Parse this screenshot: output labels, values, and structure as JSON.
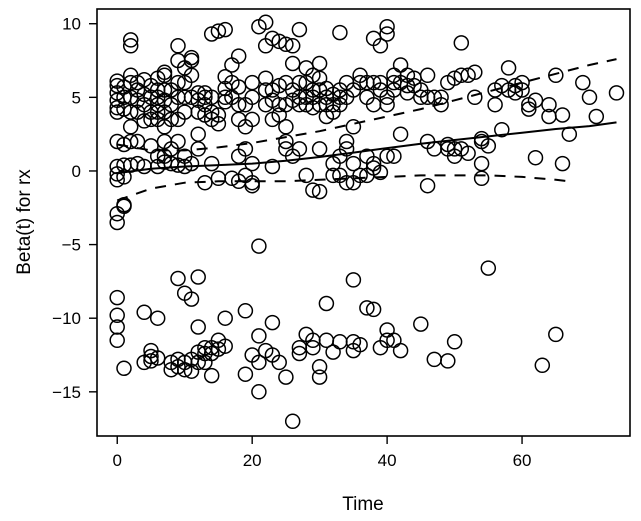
{
  "chart_data": {
    "type": "scatter",
    "xlabel": "Time",
    "ylabel": "Beta(t) for rx",
    "xlim": [
      -3,
      76
    ],
    "ylim": [
      -18,
      11
    ],
    "xticks": [
      0,
      20,
      40,
      60
    ],
    "yticks": [
      -15,
      -10,
      -5,
      0,
      5,
      10
    ],
    "grid": false,
    "points": [
      [
        0,
        -0.2
      ],
      [
        0,
        0.3
      ],
      [
        0,
        -0.6
      ],
      [
        0,
        2.0
      ],
      [
        0,
        4.0
      ],
      [
        0,
        4.3
      ],
      [
        0,
        4.8
      ],
      [
        0,
        5.3
      ],
      [
        0,
        5.8
      ],
      [
        0,
        6.1
      ],
      [
        0,
        -2.9
      ],
      [
        0,
        -3.5
      ],
      [
        0,
        -8.6
      ],
      [
        0,
        -9.8
      ],
      [
        0,
        -10.6
      ],
      [
        0,
        -11.5
      ],
      [
        1,
        -0.4
      ],
      [
        1,
        0.4
      ],
      [
        1,
        1.8
      ],
      [
        1,
        4.2
      ],
      [
        1,
        5.0
      ],
      [
        1,
        5.7
      ],
      [
        1,
        -2.3
      ],
      [
        1,
        -2.4
      ],
      [
        1,
        -13.4
      ],
      [
        2,
        0.4
      ],
      [
        2,
        2.0
      ],
      [
        2,
        3.0
      ],
      [
        2,
        4.0
      ],
      [
        2,
        5.0
      ],
      [
        2,
        6.0
      ],
      [
        2,
        6.5
      ],
      [
        2,
        8.5
      ],
      [
        2,
        8.9
      ],
      [
        3,
        0.5
      ],
      [
        3,
        2.0
      ],
      [
        3,
        4.0
      ],
      [
        3,
        5.5
      ],
      [
        3,
        6.0
      ],
      [
        3,
        4.8
      ],
      [
        4,
        0.3
      ],
      [
        4,
        3.4
      ],
      [
        4,
        4.5
      ],
      [
        4,
        5.2
      ],
      [
        4,
        6.2
      ],
      [
        4,
        -9.6
      ],
      [
        4,
        -13.0
      ],
      [
        5,
        1.7
      ],
      [
        5,
        3.5
      ],
      [
        5,
        4.0
      ],
      [
        5,
        5.0
      ],
      [
        5,
        5.8
      ],
      [
        5,
        -12.2
      ],
      [
        5,
        -12.6
      ],
      [
        5,
        -12.9
      ],
      [
        6,
        0.3
      ],
      [
        6,
        1.0
      ],
      [
        6,
        3.5
      ],
      [
        6,
        4.0
      ],
      [
        6,
        4.5
      ],
      [
        6,
        5.0
      ],
      [
        6,
        5.5
      ],
      [
        6,
        6.3
      ],
      [
        6,
        -10.0
      ],
      [
        6,
        -12.7
      ],
      [
        7,
        0.6
      ],
      [
        7,
        1.0
      ],
      [
        7,
        2.0
      ],
      [
        7,
        3.0
      ],
      [
        7,
        4.0
      ],
      [
        7,
        4.8
      ],
      [
        7,
        5.5
      ],
      [
        7,
        6.5
      ],
      [
        7,
        6.7
      ],
      [
        8,
        0.5
      ],
      [
        8,
        1.5
      ],
      [
        8,
        3.5
      ],
      [
        8,
        4.5
      ],
      [
        8,
        5.5
      ],
      [
        8,
        -13.0
      ],
      [
        8,
        -13.5
      ],
      [
        9,
        0.4
      ],
      [
        9,
        2.0
      ],
      [
        9,
        3.5
      ],
      [
        9,
        5.0
      ],
      [
        9,
        6.0
      ],
      [
        9,
        7.5
      ],
      [
        9,
        8.5
      ],
      [
        9,
        -7.3
      ],
      [
        9,
        -12.8
      ],
      [
        9,
        -13.3
      ],
      [
        10,
        0.3
      ],
      [
        10,
        1.0
      ],
      [
        10,
        4.0
      ],
      [
        10,
        5.0
      ],
      [
        10,
        6.0
      ],
      [
        10,
        7.0
      ],
      [
        10,
        -8.3
      ],
      [
        10,
        -13.0
      ],
      [
        10,
        -13.5
      ],
      [
        11,
        0.5
      ],
      [
        11,
        5.0
      ],
      [
        11,
        6.5
      ],
      [
        11,
        7.5
      ],
      [
        11,
        7.7
      ],
      [
        11,
        -8.7
      ],
      [
        11,
        -12.8
      ],
      [
        11,
        -13.6
      ],
      [
        12,
        1.5
      ],
      [
        12,
        2.5
      ],
      [
        12,
        4.0
      ],
      [
        12,
        4.8
      ],
      [
        12,
        5.3
      ],
      [
        12,
        -7.2
      ],
      [
        12,
        -10.6
      ],
      [
        12,
        -12.3
      ],
      [
        12,
        -13.0
      ],
      [
        13,
        -0.8
      ],
      [
        13,
        3.8
      ],
      [
        13,
        4.5
      ],
      [
        13,
        5.0
      ],
      [
        13,
        5.3
      ],
      [
        13,
        -12.0
      ],
      [
        13,
        -12.4
      ],
      [
        13,
        -13.0
      ],
      [
        14,
        0.5
      ],
      [
        14,
        3.5
      ],
      [
        14,
        4.0
      ],
      [
        14,
        5.0
      ],
      [
        14,
        9.3
      ],
      [
        14,
        -12.0
      ],
      [
        14,
        -12.4
      ],
      [
        14,
        -13.9
      ],
      [
        15,
        -0.5
      ],
      [
        15,
        3.2
      ],
      [
        15,
        3.8
      ],
      [
        15,
        9.5
      ],
      [
        15,
        -11.5
      ],
      [
        15,
        -12.1
      ],
      [
        16,
        4.7
      ],
      [
        16,
        5.0
      ],
      [
        16,
        5.6
      ],
      [
        16,
        6.4
      ],
      [
        16,
        9.6
      ],
      [
        16,
        -10.0
      ],
      [
        16,
        -11.9
      ],
      [
        17,
        5.0
      ],
      [
        17,
        6.0
      ],
      [
        17,
        7.2
      ],
      [
        17,
        -0.5
      ],
      [
        18,
        1.0
      ],
      [
        18,
        3.5
      ],
      [
        18,
        4.5
      ],
      [
        18,
        5.7
      ],
      [
        18,
        7.8
      ],
      [
        18,
        -0.7
      ],
      [
        19,
        1.5
      ],
      [
        19,
        3.0
      ],
      [
        19,
        4.5
      ],
      [
        19,
        -0.3
      ],
      [
        19,
        -9.5
      ],
      [
        19,
        -13.8
      ],
      [
        20,
        0.5
      ],
      [
        20,
        3.5
      ],
      [
        20,
        5.0
      ],
      [
        20,
        6.0
      ],
      [
        20,
        -0.8
      ],
      [
        20,
        -1.0
      ],
      [
        20,
        -12.5
      ],
      [
        21,
        9.8
      ],
      [
        21,
        -5.1
      ],
      [
        21,
        -11.2
      ],
      [
        21,
        -13.0
      ],
      [
        21,
        -15.0
      ],
      [
        22,
        10.1
      ],
      [
        22,
        4.5
      ],
      [
        22,
        5.5
      ],
      [
        22,
        6.3
      ],
      [
        22,
        8.5
      ],
      [
        22,
        -12.2
      ],
      [
        23,
        3.5
      ],
      [
        23,
        4.8
      ],
      [
        23,
        5.5
      ],
      [
        23,
        9.0
      ],
      [
        23,
        0.3
      ],
      [
        23,
        -10.3
      ],
      [
        23,
        -12.5
      ],
      [
        24,
        3.8
      ],
      [
        24,
        4.5
      ],
      [
        24,
        5.8
      ],
      [
        24,
        8.8
      ],
      [
        24,
        -13.0
      ],
      [
        25,
        1.5
      ],
      [
        25,
        2.0
      ],
      [
        25,
        3.0
      ],
      [
        25,
        4.5
      ],
      [
        25,
        6.0
      ],
      [
        25,
        8.6
      ],
      [
        25,
        -14.0
      ],
      [
        26,
        1.0
      ],
      [
        26,
        4.8
      ],
      [
        26,
        5.5
      ],
      [
        26,
        7.3
      ],
      [
        26,
        8.5
      ],
      [
        26,
        -17.0
      ],
      [
        27,
        1.5
      ],
      [
        27,
        4.5
      ],
      [
        27,
        5.0
      ],
      [
        27,
        6.0
      ],
      [
        27,
        9.6
      ],
      [
        27,
        -12.0
      ],
      [
        27,
        -12.4
      ],
      [
        28,
        4.5
      ],
      [
        28,
        5.0
      ],
      [
        28,
        6.0
      ],
      [
        28,
        7.0
      ],
      [
        28,
        -0.3
      ],
      [
        28,
        -11.1
      ],
      [
        29,
        4.3
      ],
      [
        29,
        5.0
      ],
      [
        29,
        5.5
      ],
      [
        29,
        6.5
      ],
      [
        29,
        -1.3
      ],
      [
        29,
        -11.5
      ],
      [
        29,
        -12.0
      ],
      [
        30,
        1.5
      ],
      [
        30,
        4.5
      ],
      [
        30,
        5.5
      ],
      [
        30,
        6.3
      ],
      [
        30,
        7.3
      ],
      [
        30,
        -1.4
      ],
      [
        30,
        -13.3
      ],
      [
        30,
        -14.0
      ],
      [
        31,
        3.7
      ],
      [
        31,
        4.5
      ],
      [
        31,
        5.0
      ],
      [
        31,
        5.6
      ],
      [
        31,
        -9.0
      ],
      [
        31,
        -11.5
      ],
      [
        32,
        0.5
      ],
      [
        32,
        4.0
      ],
      [
        32,
        4.5
      ],
      [
        32,
        5.2
      ],
      [
        32,
        -0.3
      ],
      [
        32,
        -12.3
      ],
      [
        33,
        1.0
      ],
      [
        33,
        4.5
      ],
      [
        33,
        5.0
      ],
      [
        33,
        5.5
      ],
      [
        33,
        9.4
      ],
      [
        33,
        -0.3
      ],
      [
        33,
        -11.6
      ],
      [
        34,
        1.5
      ],
      [
        34,
        2.0
      ],
      [
        34,
        5.0
      ],
      [
        34,
        6.0
      ],
      [
        34,
        -0.8
      ],
      [
        35,
        0.5
      ],
      [
        35,
        3.0
      ],
      [
        35,
        5.5
      ],
      [
        35,
        -0.8
      ],
      [
        35,
        -7.4
      ],
      [
        35,
        -11.6
      ],
      [
        35,
        -12.2
      ],
      [
        36,
        6.0
      ],
      [
        36,
        6.5
      ],
      [
        36,
        -0.3
      ],
      [
        36,
        -11.8
      ],
      [
        37,
        1.0
      ],
      [
        37,
        5.0
      ],
      [
        37,
        6.0
      ],
      [
        37,
        -0.3
      ],
      [
        37,
        -9.3
      ],
      [
        38,
        0.5
      ],
      [
        38,
        4.5
      ],
      [
        38,
        6.0
      ],
      [
        38,
        9.0
      ],
      [
        38,
        0.2
      ],
      [
        38,
        -9.4
      ],
      [
        39,
        5.5
      ],
      [
        39,
        6.0
      ],
      [
        39,
        8.5
      ],
      [
        39,
        -0.1
      ],
      [
        39,
        -12.0
      ],
      [
        40,
        1.0
      ],
      [
        40,
        4.5
      ],
      [
        40,
        5.0
      ],
      [
        40,
        9.3
      ],
      [
        40,
        9.8
      ],
      [
        40,
        -10.8
      ],
      [
        40,
        -11.5
      ],
      [
        41,
        1.0
      ],
      [
        41,
        5.5
      ],
      [
        41,
        6.0
      ],
      [
        41,
        6.5
      ],
      [
        41,
        -11.5
      ],
      [
        42,
        2.5
      ],
      [
        42,
        6.0
      ],
      [
        42,
        7.2
      ],
      [
        42,
        -12.2
      ],
      [
        43,
        5.3
      ],
      [
        43,
        5.8
      ],
      [
        43,
        6.5
      ],
      [
        44,
        5.8
      ],
      [
        44,
        6.3
      ],
      [
        45,
        5.0
      ],
      [
        45,
        5.5
      ],
      [
        45,
        -10.4
      ],
      [
        46,
        2.0
      ],
      [
        46,
        5.0
      ],
      [
        46,
        6.5
      ],
      [
        46,
        -1.0
      ],
      [
        47,
        1.5
      ],
      [
        47,
        5.0
      ],
      [
        47,
        -12.8
      ],
      [
        48,
        4.5
      ],
      [
        48,
        5.0
      ],
      [
        49,
        1.5
      ],
      [
        49,
        1.8
      ],
      [
        49,
        6.0
      ],
      [
        49,
        -12.9
      ],
      [
        50,
        1.0
      ],
      [
        50,
        1.5
      ],
      [
        50,
        6.3
      ],
      [
        50,
        -11.6
      ],
      [
        51,
        1.5
      ],
      [
        51,
        6.5
      ],
      [
        51,
        8.7
      ],
      [
        52,
        6.5
      ],
      [
        52,
        1.2
      ],
      [
        53,
        5.0
      ],
      [
        53,
        6.7
      ],
      [
        54,
        0.5
      ],
      [
        54,
        2.0
      ],
      [
        54,
        2.2
      ],
      [
        54,
        -0.5
      ],
      [
        55,
        1.7
      ],
      [
        55,
        -6.6
      ],
      [
        56,
        5.5
      ],
      [
        56,
        4.5
      ],
      [
        57,
        5.8
      ],
      [
        57,
        2.8
      ],
      [
        58,
        7.0
      ],
      [
        58,
        5.5
      ],
      [
        59,
        5.3
      ],
      [
        59,
        5.8
      ],
      [
        60,
        6.0
      ],
      [
        60,
        5.5
      ],
      [
        61,
        4.5
      ],
      [
        61,
        4.2
      ],
      [
        62,
        4.8
      ],
      [
        62,
        0.9
      ],
      [
        63,
        -13.2
      ],
      [
        64,
        4.5
      ],
      [
        64,
        3.7
      ],
      [
        65,
        6.5
      ],
      [
        65,
        -11.1
      ],
      [
        66,
        3.8
      ],
      [
        66,
        0.5
      ],
      [
        67,
        2.5
      ],
      [
        69,
        6.0
      ],
      [
        70,
        5.0
      ],
      [
        71,
        3.7
      ],
      [
        74,
        5.3
      ]
    ],
    "fit_line": {
      "x": [
        0,
        5,
        10,
        15,
        20,
        25,
        30,
        35,
        40,
        45,
        50,
        55,
        60,
        65,
        70,
        74
      ],
      "y": [
        -0.15,
        0.15,
        0.3,
        0.4,
        0.5,
        0.7,
        0.95,
        1.25,
        1.55,
        1.85,
        2.1,
        2.35,
        2.6,
        2.85,
        3.05,
        3.3
      ]
    },
    "ci_upper": {
      "x": [
        0,
        5,
        10,
        15,
        20,
        25,
        30,
        35,
        40,
        45,
        50,
        55,
        60,
        65,
        70,
        74
      ],
      "y": [
        1.8,
        1.4,
        1.4,
        1.6,
        1.9,
        2.3,
        2.7,
        3.2,
        3.7,
        4.2,
        4.8,
        5.4,
        6.0,
        6.6,
        7.2,
        7.6
      ]
    },
    "ci_lower": {
      "x": [
        0,
        5,
        10,
        15,
        20,
        25,
        30,
        35,
        40,
        45,
        50,
        55,
        60,
        65,
        67
      ],
      "y": [
        -2.0,
        -1.2,
        -0.8,
        -0.7,
        -0.7,
        -0.7,
        -0.6,
        -0.5,
        -0.4,
        -0.3,
        -0.3,
        -0.3,
        -0.4,
        -0.6,
        -0.7
      ]
    }
  }
}
